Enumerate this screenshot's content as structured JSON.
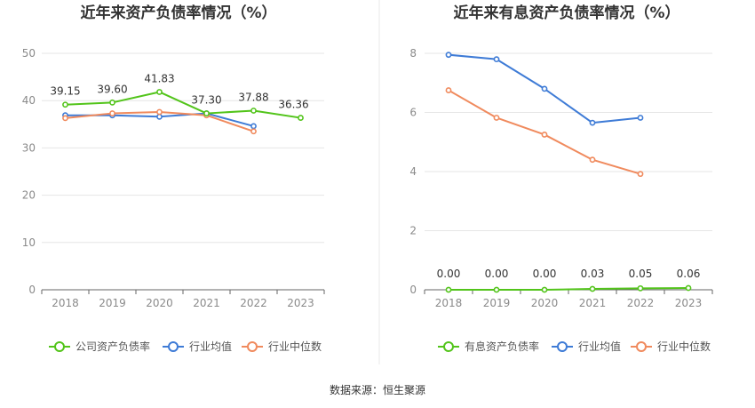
{
  "source": "数据来源：恒生聚源",
  "chart_data": [
    {
      "type": "line",
      "title": "近年来资产负债率情况（%）",
      "categories": [
        "2018",
        "2019",
        "2020",
        "2021",
        "2022",
        "2023"
      ],
      "ylim": [
        0,
        50
      ],
      "yticks": [
        0,
        10,
        20,
        30,
        40,
        50
      ],
      "grid": true,
      "legend_position": "bottom",
      "series": [
        {
          "name": "公司资产负债率",
          "color": "#52c41a",
          "values": [
            39.15,
            39.6,
            41.83,
            37.3,
            37.88,
            36.36
          ],
          "labels": [
            "39.15",
            "39.60",
            "41.83",
            "37.30",
            "37.88",
            "36.36"
          ]
        },
        {
          "name": "行业均值",
          "color": "#3e7bd6",
          "values": [
            36.9,
            36.9,
            36.6,
            37.3,
            34.6,
            null
          ]
        },
        {
          "name": "行业中位数",
          "color": "#f08a5d",
          "values": [
            36.3,
            37.3,
            37.6,
            36.9,
            33.5,
            null
          ]
        }
      ]
    },
    {
      "type": "line",
      "title": "近年来有息资产负债率情况（%）",
      "categories": [
        "2018",
        "2019",
        "2020",
        "2021",
        "2022",
        "2023"
      ],
      "ylim": [
        0,
        8
      ],
      "yticks": [
        0,
        2,
        4,
        6,
        8
      ],
      "grid": true,
      "legend_position": "bottom",
      "series": [
        {
          "name": "有息资产负债率",
          "color": "#52c41a",
          "values": [
            0.0,
            0.0,
            0.0,
            0.03,
            0.05,
            0.06
          ],
          "labels": [
            "0.00",
            "0.00",
            "0.00",
            "0.03",
            "0.05",
            "0.06"
          ]
        },
        {
          "name": "行业均值",
          "color": "#3e7bd6",
          "values": [
            7.95,
            7.8,
            6.8,
            5.65,
            5.82,
            null
          ]
        },
        {
          "name": "行业中位数",
          "color": "#f08a5d",
          "values": [
            6.75,
            5.82,
            5.25,
            4.4,
            3.92,
            null
          ]
        }
      ]
    }
  ]
}
